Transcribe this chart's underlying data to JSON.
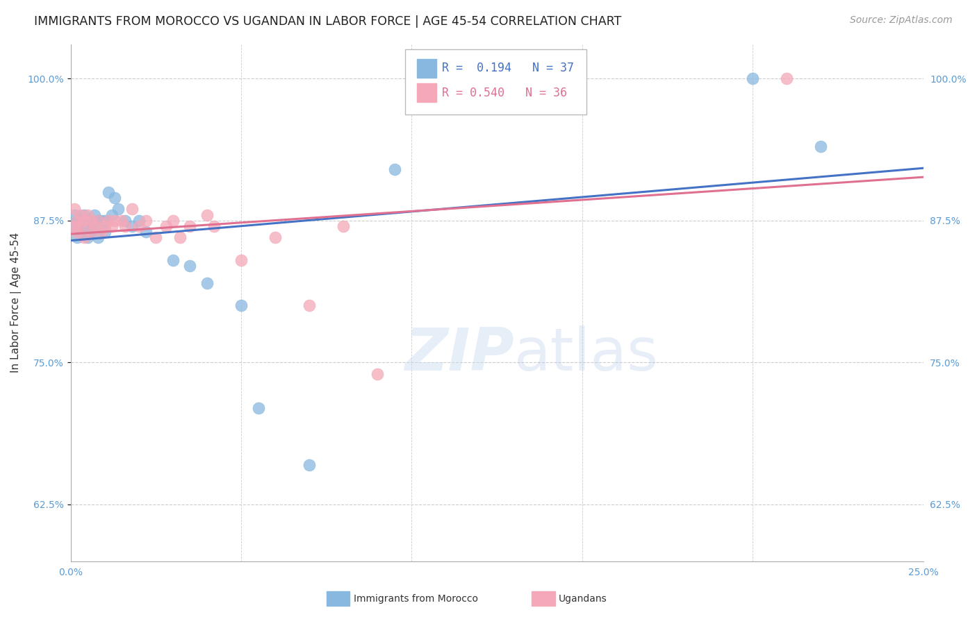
{
  "title": "IMMIGRANTS FROM MOROCCO VS UGANDAN IN LABOR FORCE | AGE 45-54 CORRELATION CHART",
  "source_text": "Source: ZipAtlas.com",
  "ylabel": "In Labor Force | Age 45-54",
  "xlim": [
    0.0,
    0.25
  ],
  "ylim": [
    0.575,
    1.03
  ],
  "xtick_positions": [
    0.0,
    0.05,
    0.1,
    0.15,
    0.2,
    0.25
  ],
  "xticklabels": [
    "0.0%",
    "",
    "",
    "",
    "",
    "25.0%"
  ],
  "ytick_positions": [
    0.625,
    0.75,
    0.875,
    1.0
  ],
  "yticklabels": [
    "62.5%",
    "75.0%",
    "87.5%",
    "100.0%"
  ],
  "blue_color": "#88b8e0",
  "pink_color": "#f4a8b8",
  "blue_line_color": "#4472c4",
  "pink_line_color": "#e07090",
  "legend_r_blue": "0.194",
  "legend_n_blue": "37",
  "legend_r_pink": "0.540",
  "legend_n_pink": "36",
  "blue_x": [
    0.001,
    0.001,
    0.002,
    0.002,
    0.003,
    0.003,
    0.004,
    0.004,
    0.005,
    0.005,
    0.006,
    0.006,
    0.007,
    0.007,
    0.008,
    0.008,
    0.009,
    0.009,
    0.01,
    0.01,
    0.011,
    0.012,
    0.013,
    0.014,
    0.016,
    0.018,
    0.02,
    0.022,
    0.03,
    0.035,
    0.04,
    0.05,
    0.055,
    0.07,
    0.095,
    0.2,
    0.22
  ],
  "blue_y": [
    0.87,
    0.88,
    0.875,
    0.86,
    0.875,
    0.865,
    0.88,
    0.865,
    0.875,
    0.86,
    0.875,
    0.865,
    0.88,
    0.87,
    0.875,
    0.86,
    0.875,
    0.87,
    0.875,
    0.865,
    0.9,
    0.88,
    0.895,
    0.885,
    0.875,
    0.87,
    0.875,
    0.865,
    0.84,
    0.835,
    0.82,
    0.8,
    0.71,
    0.66,
    0.92,
    1.0,
    0.94
  ],
  "pink_x": [
    0.001,
    0.001,
    0.002,
    0.002,
    0.003,
    0.003,
    0.004,
    0.004,
    0.005,
    0.006,
    0.006,
    0.007,
    0.008,
    0.009,
    0.01,
    0.011,
    0.012,
    0.013,
    0.015,
    0.016,
    0.018,
    0.02,
    0.022,
    0.025,
    0.028,
    0.03,
    0.032,
    0.035,
    0.04,
    0.042,
    0.05,
    0.06,
    0.07,
    0.08,
    0.09,
    0.21
  ],
  "pink_y": [
    0.87,
    0.885,
    0.875,
    0.865,
    0.88,
    0.87,
    0.875,
    0.86,
    0.88,
    0.875,
    0.865,
    0.87,
    0.875,
    0.865,
    0.87,
    0.875,
    0.87,
    0.875,
    0.875,
    0.87,
    0.885,
    0.87,
    0.875,
    0.86,
    0.87,
    0.875,
    0.86,
    0.87,
    0.88,
    0.87,
    0.84,
    0.86,
    0.8,
    0.87,
    0.74,
    1.0
  ],
  "watermark_zip": "ZIP",
  "watermark_atlas": "atlas",
  "title_fontsize": 12.5,
  "axis_label_fontsize": 11,
  "tick_fontsize": 10,
  "legend_fontsize": 12,
  "source_fontsize": 10,
  "background_color": "#ffffff",
  "grid_color": "#cccccc",
  "tick_color": "#5b9bd5"
}
